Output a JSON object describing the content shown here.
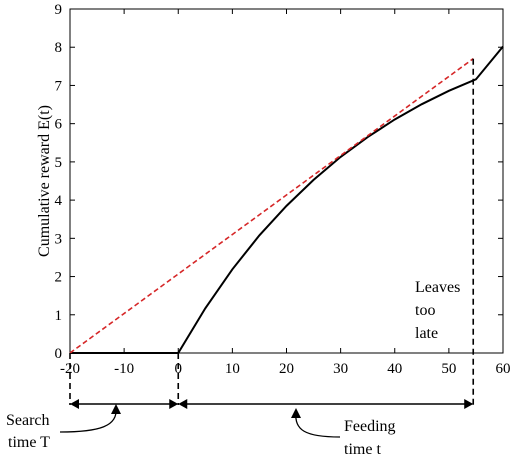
{
  "chart_data": {
    "type": "line",
    "ylabel": "Cumulative reward E(t)",
    "xlabel": "",
    "xlim": [
      -20,
      60
    ],
    "ylim": [
      0,
      9
    ],
    "x_ticks": [
      -20,
      -10,
      0,
      10,
      20,
      30,
      40,
      50,
      60
    ],
    "y_ticks": [
      0,
      1,
      2,
      3,
      4,
      5,
      6,
      7,
      8,
      9
    ],
    "grid": false,
    "series": [
      {
        "style": "solid",
        "color": "#000000",
        "x": [
          -20,
          0,
          5,
          10,
          15,
          20,
          25,
          30,
          35,
          40,
          45,
          50,
          55,
          60
        ],
        "y": [
          0,
          0,
          1.17,
          2.19,
          3.08,
          3.85,
          4.53,
          5.13,
          5.65,
          6.11,
          6.51,
          6.86,
          7.16,
          8.02
        ]
      },
      {
        "style": "dashed",
        "color": "#d62728",
        "x": [
          -20,
          54.5
        ],
        "y": [
          0,
          7.7
        ]
      }
    ],
    "annotations": {
      "leaves_too_late": [
        "Leaves",
        "too",
        "late"
      ],
      "search_time": [
        "Search",
        "time T"
      ],
      "feeding_time": [
        "Feeding",
        "time t"
      ]
    },
    "markers": {
      "departure_x": 54.5,
      "departure_y": 7.7,
      "search_start": -20,
      "search_end": 0,
      "feeding_end": 54.5
    }
  }
}
